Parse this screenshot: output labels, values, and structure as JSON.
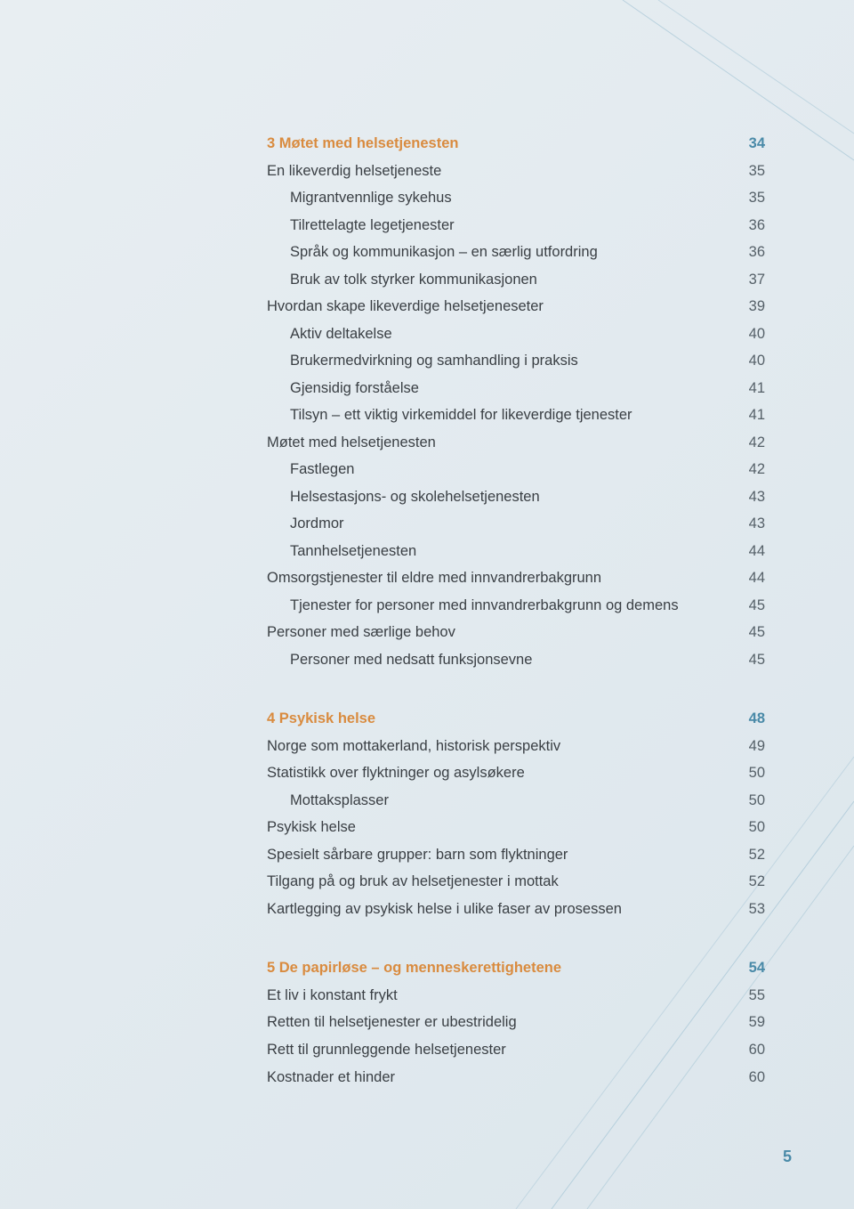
{
  "colors": {
    "heading_title": "#d98b3f",
    "heading_page": "#4a8aa8",
    "body_text": "#3a3f44",
    "page_text": "#556068",
    "bg_start": "#e8eef2",
    "bg_end": "#dce6ec",
    "line_color": "#8fb8cc"
  },
  "page_number": "5",
  "sections": [
    {
      "heading": {
        "title": "3 Møtet med helsetjenesten",
        "page": "34"
      },
      "items": [
        {
          "title": "En likeverdig helsetjeneste",
          "page": "35",
          "indent": false
        },
        {
          "title": "Migrantvennlige sykehus",
          "page": "35",
          "indent": true
        },
        {
          "title": "Tilrettelagte legetjenester",
          "page": "36",
          "indent": true
        },
        {
          "title": "Språk og kommunikasjon – en særlig utfordring",
          "page": "36",
          "indent": true
        },
        {
          "title": "Bruk av tolk styrker kommunikasjonen",
          "page": "37",
          "indent": true
        },
        {
          "title": "Hvordan skape likeverdige helsetjeneseter",
          "page": "39",
          "indent": false
        },
        {
          "title": "Aktiv deltakelse",
          "page": "40",
          "indent": true
        },
        {
          "title": "Brukermedvirkning og samhandling i praksis",
          "page": "40",
          "indent": true
        },
        {
          "title": "Gjensidig forståelse",
          "page": "41",
          "indent": true
        },
        {
          "title": "Tilsyn – ett viktig virkemiddel for likeverdige tjenester",
          "page": "41",
          "indent": true
        },
        {
          "title": "Møtet med helsetjenesten",
          "page": "42",
          "indent": false
        },
        {
          "title": "Fastlegen",
          "page": "42",
          "indent": true
        },
        {
          "title": "Helsestasjons- og skolehelsetjenesten",
          "page": "43",
          "indent": true
        },
        {
          "title": "Jordmor",
          "page": "43",
          "indent": true
        },
        {
          "title": "Tannhelsetjenesten",
          "page": "44",
          "indent": true
        },
        {
          "title": "Omsorgstjenester til eldre med innvandrerbakgrunn",
          "page": "44",
          "indent": false
        },
        {
          "title": "Tjenester for personer med innvandrerbakgrunn og demens",
          "page": "45",
          "indent": true
        },
        {
          "title": "Personer med særlige behov",
          "page": "45",
          "indent": false
        },
        {
          "title": "Personer med nedsatt funksjonsevne",
          "page": "45",
          "indent": true
        }
      ]
    },
    {
      "heading": {
        "title": "4 Psykisk helse",
        "page": "48"
      },
      "items": [
        {
          "title": "Norge som mottakerland, historisk perspektiv",
          "page": "49",
          "indent": false
        },
        {
          "title": "Statistikk over flyktninger og asylsøkere",
          "page": "50",
          "indent": false
        },
        {
          "title": "Mottaksplasser",
          "page": "50",
          "indent": true
        },
        {
          "title": "Psykisk helse",
          "page": "50",
          "indent": false
        },
        {
          "title": "Spesielt sårbare grupper: barn som flyktninger",
          "page": "52",
          "indent": false
        },
        {
          "title": "Tilgang på og bruk av helsetjenester i mottak",
          "page": "52",
          "indent": false
        },
        {
          "title": "Kartlegging av psykisk helse i ulike faser av prosessen",
          "page": "53",
          "indent": false
        }
      ]
    },
    {
      "heading": {
        "title": "5 De papirløse – og menneskerettighetene",
        "page": "54"
      },
      "items": [
        {
          "title": "Et liv i konstant frykt",
          "page": "55",
          "indent": false
        },
        {
          "title": "Retten til helsetjenester er ubestridelig",
          "page": "59",
          "indent": false
        },
        {
          "title": "Rett til grunnleggende helsetjenester",
          "page": "60",
          "indent": false
        },
        {
          "title": "Kostnader et hinder",
          "page": "60",
          "indent": false
        }
      ]
    }
  ]
}
